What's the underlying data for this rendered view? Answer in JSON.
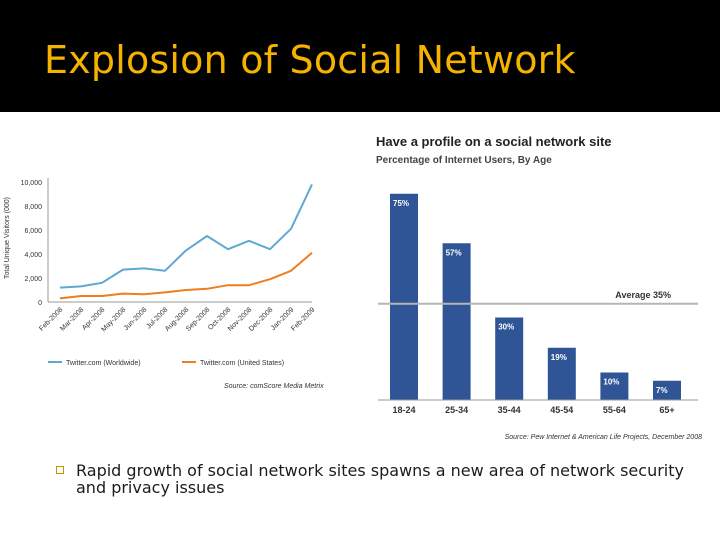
{
  "slide": {
    "title": "Explosion of Social Network",
    "bullet": "Rapid growth of social network sites spawns a new area of network security and privacy issues"
  },
  "chart_data": [
    {
      "type": "line",
      "title": "",
      "xlabel": "",
      "ylabel": "Total Unique Visitors (000)",
      "x": [
        "Feb-2008",
        "Mar-2008",
        "Apr-2008",
        "May-2008",
        "Jun-2008",
        "Jul-2008",
        "Aug-2008",
        "Sep-2008",
        "Oct-2008",
        "Nov-2008",
        "Dec-2008",
        "Jan-2009",
        "Feb-2009"
      ],
      "ylim": [
        0,
        10000
      ],
      "yticks": [
        0,
        2000,
        4000,
        6000,
        8000,
        10000
      ],
      "ytick_labels": [
        "0",
        "2,000",
        "4,000",
        "6,000",
        "8,000",
        "10,000"
      ],
      "series": [
        {
          "name": "Twitter.com (Worldwide)",
          "color": "#5fa8d3",
          "values": [
            1200,
            1300,
            1600,
            2700,
            2800,
            2600,
            4300,
            5500,
            4400,
            5100,
            4400,
            6100,
            9800
          ]
        },
        {
          "name": "Twitter.com (United States)",
          "color": "#f07d1e",
          "values": [
            300,
            500,
            500,
            700,
            650,
            800,
            1000,
            1100,
            1400,
            1400,
            1900,
            2600,
            4100
          ]
        }
      ],
      "source": "Source: comScore Media Metrix",
      "grid": false,
      "legend": "bottom"
    },
    {
      "type": "bar",
      "title": "Have a profile on a social network site",
      "subtitle": "Percentage of Internet Users, By Age",
      "categories": [
        "18-24",
        "25-34",
        "35-44",
        "45-54",
        "55-64",
        "65+"
      ],
      "values": [
        75,
        57,
        30,
        19,
        10,
        7
      ],
      "value_labels": [
        "75%",
        "57%",
        "30%",
        "19%",
        "10%",
        "7%"
      ],
      "ylim": [
        0,
        80
      ],
      "bar_color": "#2f5597",
      "reference_line": {
        "value": 35,
        "label": "Average 35%"
      },
      "source": "Source: Pew Internet & American Life Projects, December 2008"
    }
  ]
}
